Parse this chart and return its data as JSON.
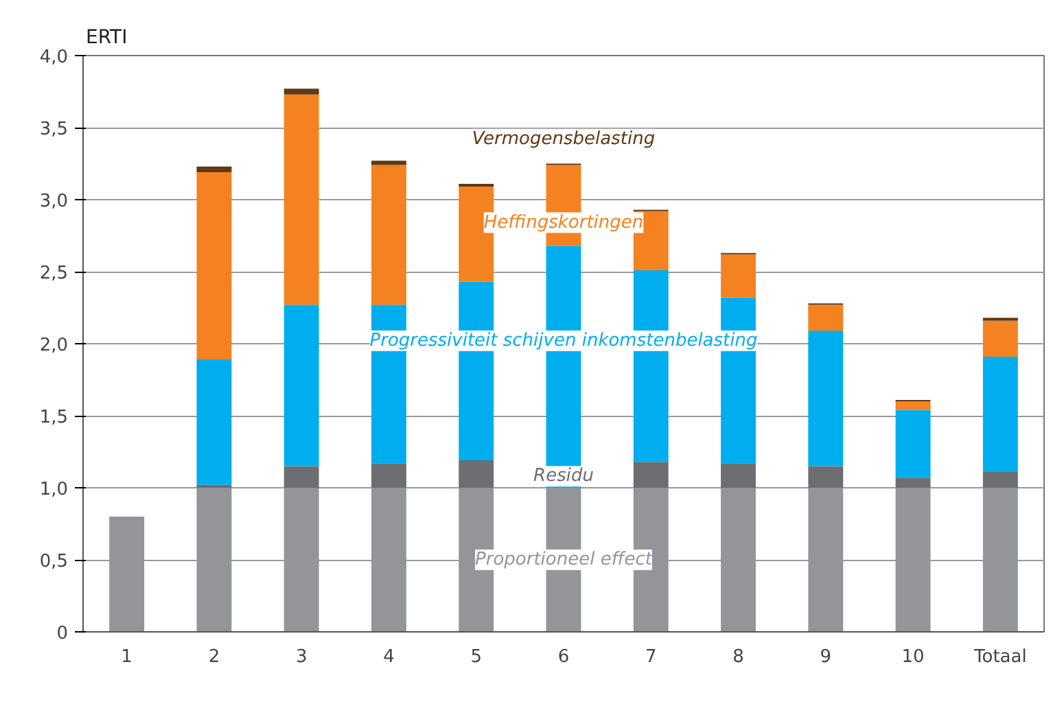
{
  "chart_data": {
    "type": "bar",
    "stacked": true,
    "ylabel": "ERTI",
    "categories": [
      "1",
      "2",
      "3",
      "4",
      "5",
      "6",
      "7",
      "8",
      "9",
      "10",
      "Totaal"
    ],
    "series": [
      {
        "name": "Proportioneel effect",
        "color": "#939598",
        "values": [
          0.8,
          1.0,
          1.0,
          1.0,
          1.0,
          1.0,
          1.0,
          1.0,
          1.0,
          1.0,
          1.0
        ]
      },
      {
        "name": "Residu",
        "color": "#6d6e71",
        "values": [
          null,
          0.02,
          0.15,
          0.17,
          0.19,
          null,
          0.18,
          0.17,
          0.15,
          0.07,
          0.11
        ]
      },
      {
        "name": "Progressiviteit schijven inkomstenbelasting",
        "color": "#00aeef",
        "values": [
          null,
          0.87,
          1.12,
          1.1,
          1.24,
          1.68,
          1.33,
          1.15,
          0.94,
          0.47,
          0.8
        ]
      },
      {
        "name": "Heffingskortingen",
        "color": "#f58220",
        "values": [
          null,
          1.3,
          1.46,
          0.97,
          0.66,
          0.56,
          0.41,
          0.3,
          0.18,
          0.06,
          0.25
        ]
      },
      {
        "name": "Vermogensbelasting",
        "color": "#603913",
        "values": [
          null,
          0.04,
          0.04,
          0.03,
          0.02,
          0.01,
          0.01,
          0.01,
          0.01,
          0.01,
          0.02
        ]
      }
    ],
    "ylim": [
      0,
      4.0
    ],
    "yticks": [
      0,
      {
        "value": 0.5,
        "label": "0,5"
      },
      {
        "value": 1.0,
        "label": "1,0"
      },
      {
        "value": 1.5,
        "label": "1,5"
      },
      {
        "value": 2.0,
        "label": "2,0"
      },
      {
        "value": 2.5,
        "label": "2,5"
      },
      {
        "value": 3.0,
        "label": "3,0"
      },
      {
        "value": 3.5,
        "label": "3,5"
      },
      {
        "value": 4.0,
        "label": "4,0"
      }
    ],
    "grid": "y"
  }
}
